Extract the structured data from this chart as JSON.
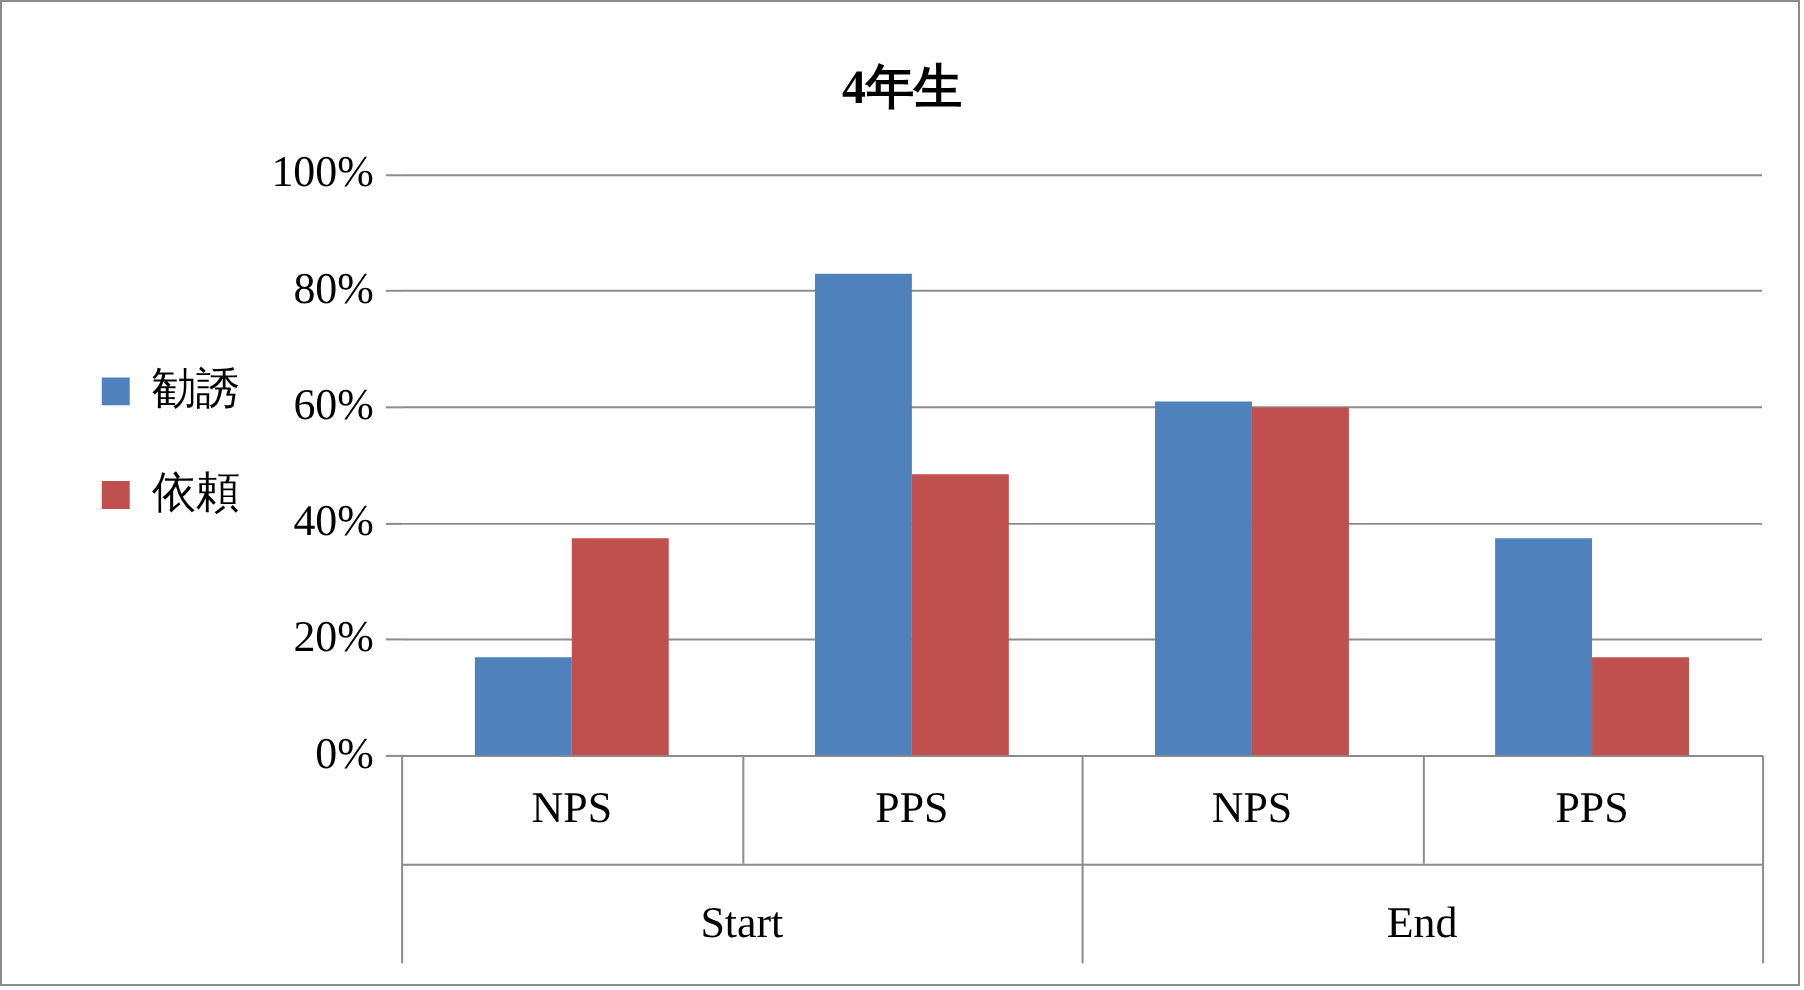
{
  "chart_data": {
    "type": "bar",
    "title": "4年生",
    "categories": [
      "NPS",
      "PPS",
      "NPS",
      "PPS"
    ],
    "series": [
      {
        "name": "勧誘",
        "color": "#4f81bd",
        "values": [
          17,
          83,
          61,
          37.5
        ]
      },
      {
        "name": "依頼",
        "color": "#c0504d",
        "values": [
          37.5,
          48.5,
          60,
          17
        ]
      }
    ],
    "ylim": [
      0,
      100
    ],
    "yticks": [
      {
        "value": 0,
        "label": "0%"
      },
      {
        "value": 20,
        "label": "20%"
      },
      {
        "value": 40,
        "label": "40%"
      },
      {
        "value": 60,
        "label": "60%"
      },
      {
        "value": 80,
        "label": "80%"
      },
      {
        "value": 100,
        "label": "100%"
      }
    ],
    "grid": "y",
    "legend": "left",
    "annotations": [
      "Start",
      "End"
    ]
  }
}
